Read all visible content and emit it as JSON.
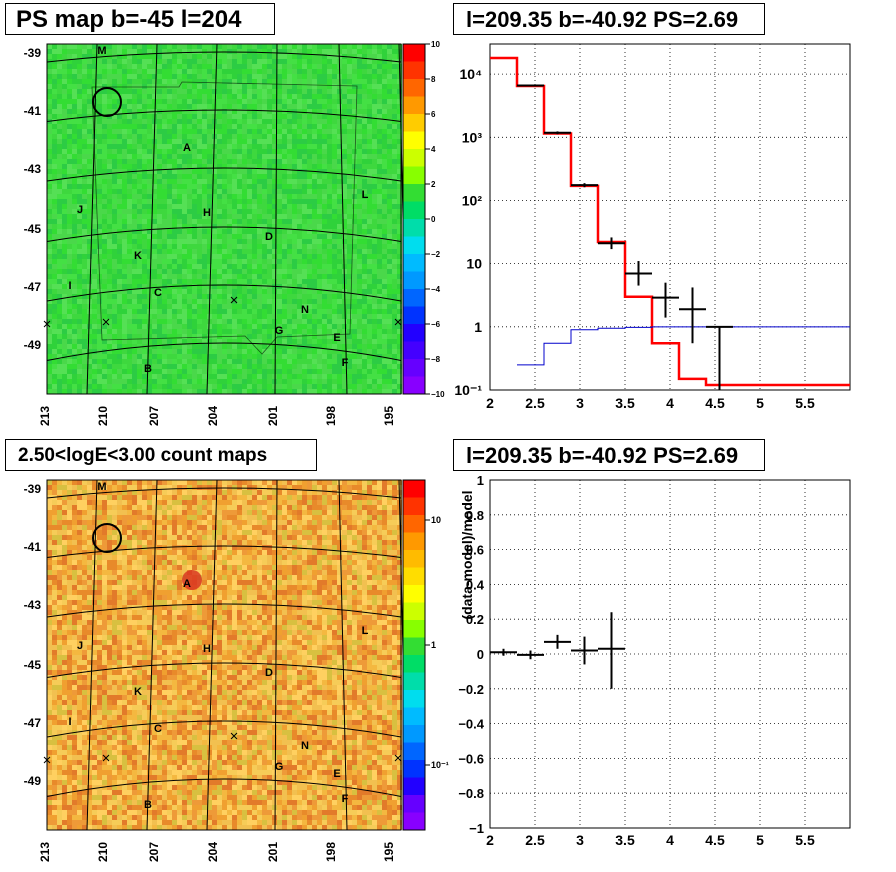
{
  "panels": {
    "map_title": "PS map b=-45 l=204",
    "fit_title": "l=209.35 b=-40.92 PS=2.69",
    "count_title": "2.50<logE<3.00 count maps",
    "resid_title": "l=209.35 b=-40.92 PS=2.69"
  },
  "map_axes": {
    "b_ticks": [
      "-39",
      "-41",
      "-43",
      "-45",
      "-47",
      "-49"
    ],
    "l_ticks": [
      "213",
      "210",
      "207",
      "204",
      "201",
      "198",
      "195"
    ]
  },
  "source_labels": [
    "M",
    "A",
    "J",
    "H",
    "L",
    "D",
    "K",
    "I",
    "C",
    "N",
    "G",
    "E",
    "B",
    "F"
  ],
  "colorbars": {
    "ps": {
      "ticks": [
        "10",
        "8",
        "6",
        "4",
        "2",
        "0",
        "−2",
        "−4",
        "−6",
        "−8",
        "−10"
      ],
      "dominant_color": "#33dd33"
    },
    "counts": {
      "ticks": [
        "10",
        "1",
        "10⁻¹"
      ],
      "dominant_color": "#f0a030"
    }
  },
  "chart_data": [
    {
      "type": "line",
      "title": "l=209.35 b=-40.92 PS=2.69",
      "xlabel": "",
      "ylabel": "",
      "xlim": [
        2,
        6
      ],
      "ylim": [
        0.1,
        30000
      ],
      "yscale": "log",
      "grid": true,
      "x_ticks": [
        "2",
        "2.5",
        "3",
        "3.5",
        "4",
        "4.5",
        "5",
        "5.5"
      ],
      "y_ticks": [
        "10⁻¹",
        "1",
        "10",
        "10²",
        "10³",
        "10⁴"
      ],
      "series": [
        {
          "kind": "step",
          "color": "#ff0000",
          "bins": [
            [
              2.0,
              2.3
            ],
            [
              2.3,
              2.6
            ],
            [
              2.6,
              2.9
            ],
            [
              2.9,
              3.2
            ],
            [
              3.2,
              3.5
            ],
            [
              3.5,
              3.8
            ],
            [
              3.8,
              4.1
            ],
            [
              4.1,
              4.4
            ],
            [
              4.4,
              6.0
            ]
          ],
          "values": [
            18000,
            6500,
            1150,
            170,
            22,
            3,
            0.55,
            0.15,
            0.12
          ]
        },
        {
          "kind": "step",
          "color": "#0000cc",
          "bins": [
            [
              2.3,
              2.6
            ],
            [
              2.6,
              2.9
            ],
            [
              2.9,
              3.2
            ],
            [
              3.2,
              3.5
            ],
            [
              3.5,
              3.8
            ],
            [
              3.8,
              6.0
            ]
          ],
          "values": [
            0.25,
            0.55,
            0.9,
            0.95,
            0.98,
            1.0
          ]
        },
        {
          "kind": "errorbar",
          "color": "#000000",
          "points": [
            {
              "x": 2.45,
              "y": 6600,
              "xerr": 0.15,
              "ylo": 6400,
              "yhi": 6800
            },
            {
              "x": 2.75,
              "y": 1180,
              "xerr": 0.15,
              "ylo": 1120,
              "yhi": 1240
            },
            {
              "x": 3.05,
              "y": 175,
              "xerr": 0.15,
              "ylo": 162,
              "yhi": 188
            },
            {
              "x": 3.35,
              "y": 21,
              "xerr": 0.15,
              "ylo": 17,
              "yhi": 26
            },
            {
              "x": 3.65,
              "y": 7,
              "xerr": 0.15,
              "ylo": 4.5,
              "yhi": 11
            },
            {
              "x": 3.95,
              "y": 2.9,
              "xerr": 0.15,
              "ylo": 1.4,
              "yhi": 5
            },
            {
              "x": 4.25,
              "y": 1.9,
              "xerr": 0.15,
              "ylo": 0.55,
              "yhi": 4.2
            },
            {
              "x": 4.55,
              "y": 1.0,
              "xerr": 0.15,
              "ylo": 0.1,
              "yhi": 1.0
            }
          ]
        }
      ]
    },
    {
      "type": "scatter",
      "title": "l=209.35 b=-40.92 PS=2.69",
      "xlabel": "",
      "ylabel": "(data-model)/model",
      "xlim": [
        2,
        6
      ],
      "ylim": [
        -1,
        1
      ],
      "grid": true,
      "x_ticks": [
        "2",
        "2.5",
        "3",
        "3.5",
        "4",
        "4.5",
        "5",
        "5.5"
      ],
      "y_ticks": [
        "−1",
        "−0.8",
        "−0.6",
        "−0.4",
        "−0.2",
        "0",
        "0.2",
        "0.4",
        "0.6",
        "0.8",
        "1"
      ],
      "series": [
        {
          "kind": "errorbar",
          "color": "#000000",
          "points": [
            {
              "x": 2.15,
              "y": 0.01,
              "xerr": 0.15,
              "ylo": -0.01,
              "yhi": 0.03
            },
            {
              "x": 2.45,
              "y": -0.005,
              "xerr": 0.15,
              "ylo": -0.03,
              "yhi": 0.02
            },
            {
              "x": 2.75,
              "y": 0.07,
              "xerr": 0.15,
              "ylo": 0.03,
              "yhi": 0.11
            },
            {
              "x": 3.05,
              "y": 0.02,
              "xerr": 0.15,
              "ylo": -0.06,
              "yhi": 0.1
            },
            {
              "x": 3.35,
              "y": 0.03,
              "xerr": 0.15,
              "ylo": -0.2,
              "yhi": 0.24
            }
          ]
        }
      ]
    }
  ]
}
